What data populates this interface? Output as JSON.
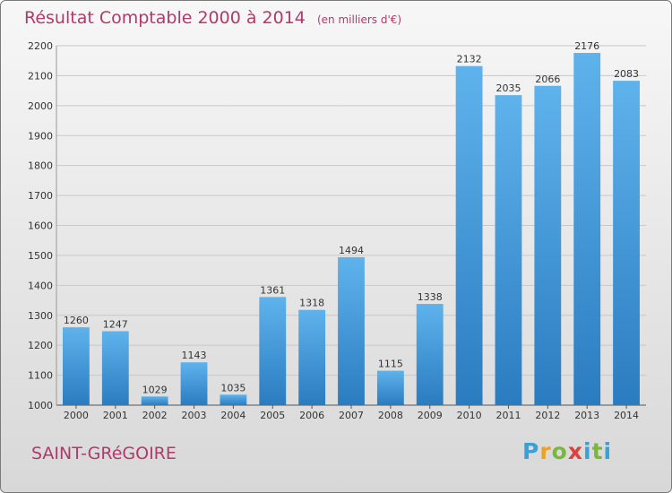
{
  "title": "Résultat Comptable 2000 à 2014",
  "subtitle": "(en milliers d'€)",
  "commune": "SAINT-GRéGOIRE",
  "logo": "Proxiti",
  "colors": {
    "bar": "#3a8fd6",
    "title": "#b03a6a"
  },
  "chart_data": {
    "type": "bar",
    "categories": [
      "2000",
      "2001",
      "2002",
      "2003",
      "2004",
      "2005",
      "2006",
      "2007",
      "2008",
      "2009",
      "2010",
      "2011",
      "2012",
      "2013",
      "2014"
    ],
    "values": [
      1260,
      1247,
      1029,
      1143,
      1035,
      1361,
      1318,
      1494,
      1115,
      1338,
      2132,
      2035,
      2066,
      2176,
      2083
    ],
    "ylim": [
      1000,
      2200
    ],
    "yticks": [
      1000,
      1100,
      1200,
      1300,
      1400,
      1500,
      1600,
      1700,
      1800,
      1900,
      2000,
      2100,
      2200
    ],
    "grid": true
  }
}
